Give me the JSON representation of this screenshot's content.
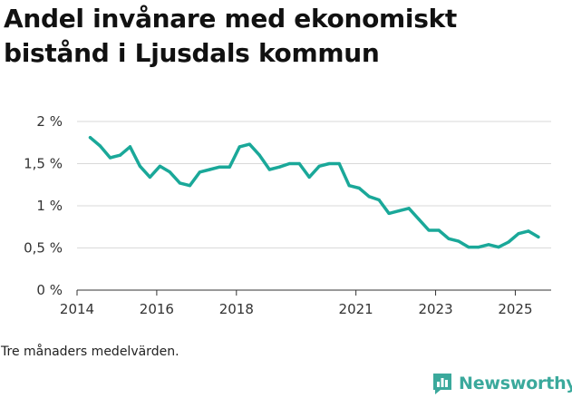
{
  "chart_data": {
    "type": "line",
    "title": "Andel invånare med ekonomiskt bistånd i Ljusdals kommun",
    "xlabel": "",
    "ylabel": "",
    "ylim": [
      0,
      2
    ],
    "xlim": [
      2014,
      2025.9
    ],
    "yticks": [
      {
        "value": 0,
        "label": "0 %"
      },
      {
        "value": 0.5,
        "label": "0,5 %"
      },
      {
        "value": 1,
        "label": "1 %"
      },
      {
        "value": 1.5,
        "label": "1,5 %"
      },
      {
        "value": 2,
        "label": "2 %"
      }
    ],
    "xticks": [
      {
        "value": 2014,
        "label": "2014"
      },
      {
        "value": 2016,
        "label": "2016"
      },
      {
        "value": 2018,
        "label": "2018"
      },
      {
        "value": 2021,
        "label": "2021"
      },
      {
        "value": 2023,
        "label": "2023"
      },
      {
        "value": 2025,
        "label": "2025"
      }
    ],
    "grid": true,
    "series": [
      {
        "name": "Andel invånare med ekonomiskt bistånd",
        "color": "#1aa899",
        "x": [
          2014.33,
          2014.58,
          2014.83,
          2015.08,
          2015.33,
          2015.58,
          2015.83,
          2016.08,
          2016.33,
          2016.58,
          2016.83,
          2017.08,
          2017.33,
          2017.58,
          2017.83,
          2018.08,
          2018.33,
          2018.58,
          2018.83,
          2019.08,
          2019.33,
          2019.58,
          2019.83,
          2020.08,
          2020.33,
          2020.58,
          2020.83,
          2021.08,
          2021.33,
          2021.58,
          2021.83,
          2022.08,
          2022.33,
          2022.58,
          2022.83,
          2023.08,
          2023.33,
          2023.58,
          2023.83,
          2024.08,
          2024.33,
          2024.58,
          2024.83,
          2025.08,
          2025.33,
          2025.58
        ],
        "values": [
          1.81,
          1.71,
          1.57,
          1.6,
          1.7,
          1.47,
          1.34,
          1.47,
          1.4,
          1.27,
          1.24,
          1.4,
          1.43,
          1.46,
          1.46,
          1.7,
          1.73,
          1.6,
          1.43,
          1.46,
          1.5,
          1.5,
          1.34,
          1.47,
          1.5,
          1.5,
          1.24,
          1.21,
          1.11,
          1.07,
          0.91,
          0.94,
          0.97,
          0.84,
          0.71,
          0.71,
          0.61,
          0.58,
          0.51,
          0.51,
          0.54,
          0.51,
          0.57,
          0.67,
          0.7,
          0.63
        ]
      }
    ]
  },
  "footnote": "Tre månaders medelvärden.",
  "brand": {
    "name": "Newsworthy",
    "icon": "newsworthy-logo-icon",
    "color": "#3ba99c"
  }
}
